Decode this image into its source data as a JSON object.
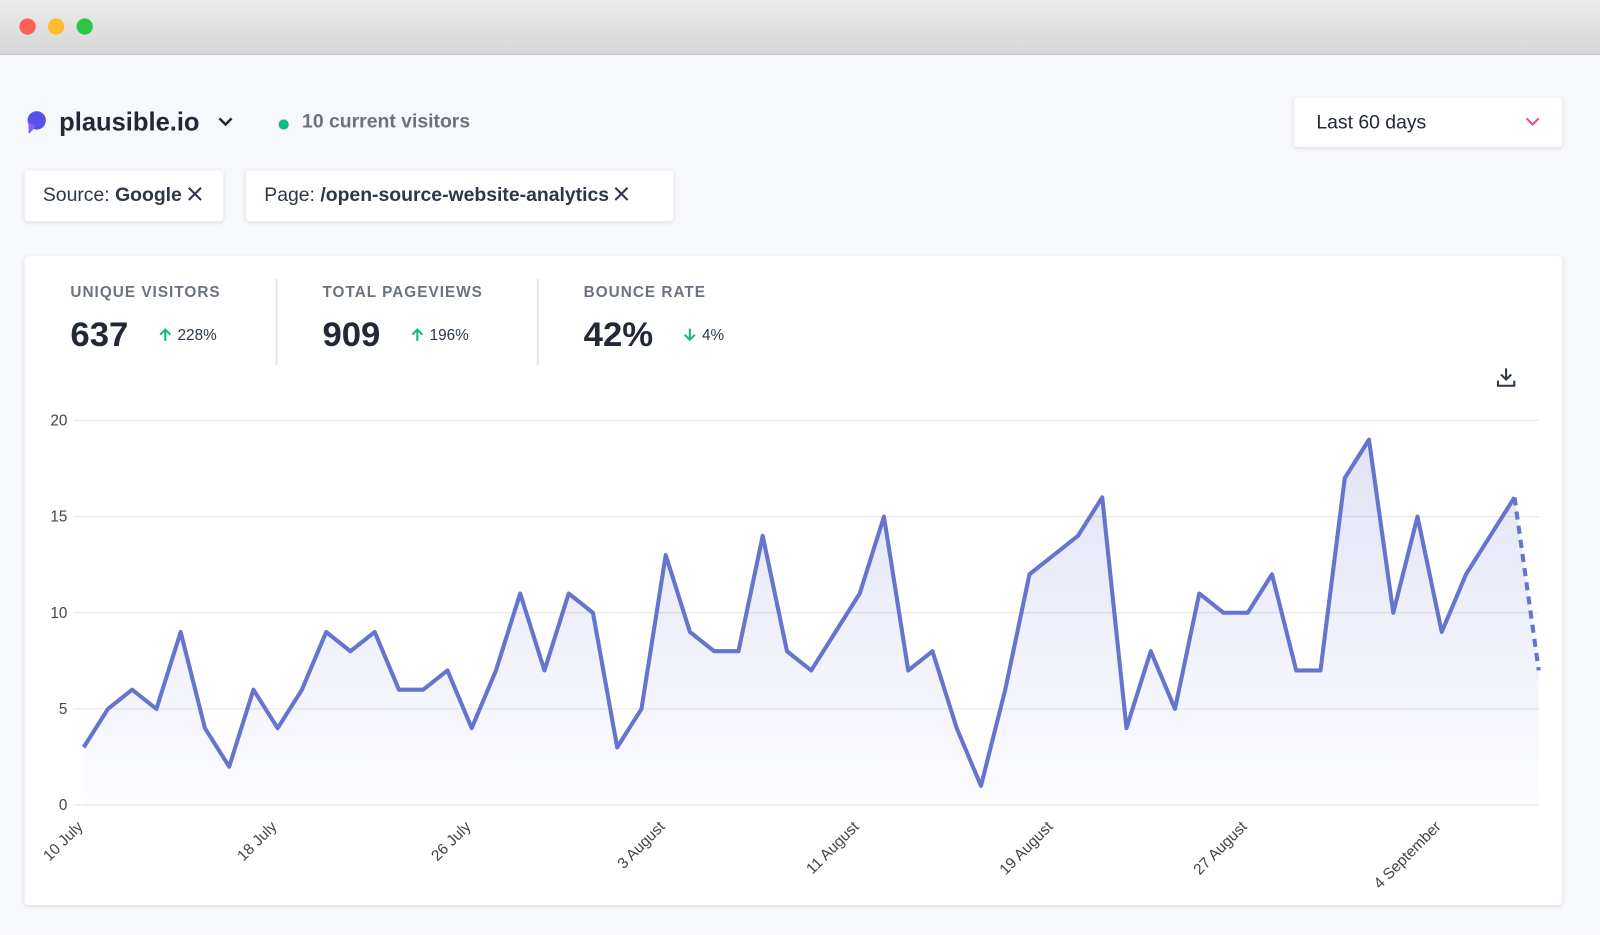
{
  "header": {
    "site": "plausible.io",
    "current_visitors": "10 current visitors",
    "period": "Last 60 days"
  },
  "filters": [
    {
      "label": "Source:",
      "value": "Google"
    },
    {
      "label": "Page:",
      "value": "/open-source-website-analytics"
    }
  ],
  "stats": [
    {
      "label": "UNIQUE VISITORS",
      "value": "637",
      "change": "228%",
      "direction": "up"
    },
    {
      "label": "TOTAL PAGEVIEWS",
      "value": "909",
      "change": "196%",
      "direction": "up"
    },
    {
      "label": "BOUNCE RATE",
      "value": "42%",
      "change": "4%",
      "direction": "down"
    }
  ],
  "chart_data": {
    "type": "line",
    "categories": [
      "10 July",
      null,
      null,
      null,
      null,
      null,
      null,
      null,
      "18 July",
      null,
      null,
      null,
      null,
      null,
      null,
      null,
      "26 July",
      null,
      null,
      null,
      null,
      null,
      null,
      null,
      "3 August",
      null,
      null,
      null,
      null,
      null,
      null,
      null,
      "11 August",
      null,
      null,
      null,
      null,
      null,
      null,
      null,
      "19 August",
      null,
      null,
      null,
      null,
      null,
      null,
      null,
      "27 August",
      null,
      null,
      null,
      null,
      null,
      null,
      null,
      "4 September",
      null,
      null,
      null,
      null
    ],
    "values": [
      3,
      5,
      6,
      5,
      9,
      4,
      2,
      6,
      4,
      6,
      9,
      8,
      9,
      6,
      6,
      7,
      4,
      7,
      11,
      7,
      11,
      10,
      3,
      5,
      13,
      9,
      8,
      8,
      14,
      8,
      7,
      9,
      11,
      15,
      7,
      8,
      4,
      1,
      6,
      12,
      13,
      14,
      16,
      4,
      8,
      5,
      11,
      10,
      10,
      12,
      7,
      7,
      17,
      19,
      10,
      15,
      9,
      12,
      14,
      16,
      7
    ],
    "color": "#6574cd",
    "ylim": [
      0,
      20
    ],
    "yticks": [
      0,
      5,
      10,
      15,
      20
    ],
    "grid": true,
    "dashed_last_segment": true
  }
}
